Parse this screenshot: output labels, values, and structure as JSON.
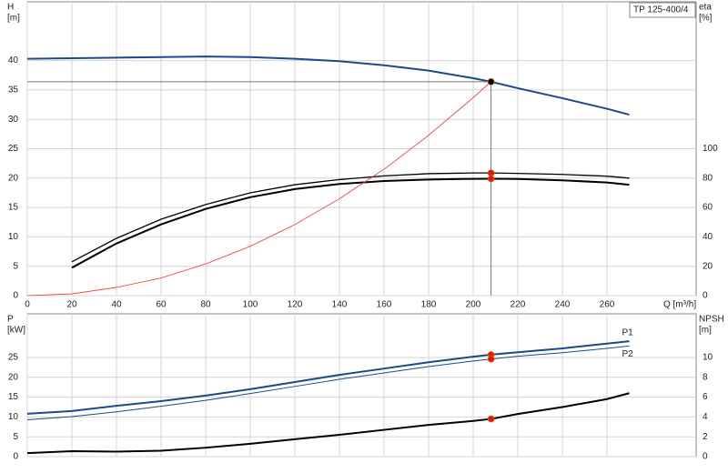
{
  "chart_data": [
    {
      "type": "line",
      "title": "TP 125-400/4",
      "ylabel": "H",
      "yunit": "[m]",
      "y2label": "eta",
      "y2unit": "[%]",
      "xlabel": "Q [m³/h]",
      "x": [
        0,
        20,
        40,
        60,
        80,
        100,
        120,
        140,
        160,
        180,
        200,
        208,
        220,
        240,
        260,
        270
      ],
      "xlim": [
        0,
        300
      ],
      "xticks": [
        0,
        20,
        40,
        60,
        80,
        100,
        120,
        140,
        160,
        180,
        200,
        220,
        240,
        260
      ],
      "ylim": [
        0,
        50
      ],
      "yticks": [
        0,
        5,
        10,
        15,
        20,
        25,
        30,
        35,
        40
      ],
      "y2lim": [
        0,
        200
      ],
      "y2ticks": [
        0,
        20,
        40,
        60,
        80,
        100
      ],
      "grid": true,
      "duty_x": 208,
      "series": [
        {
          "color": "#1b4a8a",
          "width": 2,
          "marker_color": "#f5c400",
          "values": [
            40.3,
            40.4,
            40.5,
            40.6,
            40.7,
            40.6,
            40.3,
            39.9,
            39.2,
            38.3,
            37.0,
            36.4,
            35.3,
            33.6,
            31.8,
            30.8
          ]
        },
        {
          "color": "#000000",
          "width": 1.3,
          "axis": "y2",
          "marker_color": "#ee1111",
          "values": [
            null,
            23,
            39,
            52,
            62,
            70,
            75.5,
            79,
            81.5,
            83,
            83.5,
            83.5,
            83.2,
            82.5,
            81.3,
            80
          ]
        },
        {
          "color": "#000000",
          "width": 2,
          "axis": "y2",
          "marker_color": "#ee1111",
          "values": [
            null,
            19,
            35.5,
            48.5,
            59,
            67,
            72.5,
            76,
            78,
            79,
            79.5,
            79.6,
            79.4,
            78.5,
            77,
            75.5
          ]
        },
        {
          "color": "#ff3030",
          "width": 0.8,
          "values": [
            0,
            0.3,
            1.4,
            3.0,
            5.4,
            8.4,
            12.1,
            16.5,
            21.5,
            27.3,
            33.7,
            36.4,
            null,
            null,
            null,
            null
          ]
        }
      ]
    },
    {
      "type": "line",
      "ylabel": "P",
      "yunit": "[kW]",
      "y2label": "NPSH",
      "y2unit": "[m]",
      "x": [
        0,
        20,
        40,
        60,
        80,
        100,
        120,
        140,
        160,
        180,
        200,
        208,
        220,
        240,
        260,
        270
      ],
      "xlim": [
        0,
        300
      ],
      "xticks": [
        0,
        20,
        40,
        60,
        80,
        100,
        120,
        140,
        160,
        180,
        200,
        220,
        240,
        260
      ],
      "ylim": [
        0,
        36
      ],
      "yticks": [
        0,
        5,
        10,
        15,
        20,
        25
      ],
      "y2lim": [
        0,
        14.4
      ],
      "y2ticks": [
        0,
        2,
        4,
        6,
        8,
        10
      ],
      "grid": true,
      "duty_x": 208,
      "series": [
        {
          "name": "P1",
          "color": "#1b4a8a",
          "width": 2,
          "marker_color": "#ee1111",
          "values": [
            10.8,
            11.5,
            12.8,
            14,
            15.4,
            17,
            18.8,
            20.6,
            22.2,
            23.8,
            25.2,
            25.7,
            26.3,
            27.3,
            28.5,
            29.1
          ]
        },
        {
          "name": "P2",
          "color": "#1b4a8a",
          "width": 1,
          "marker_color": "#ee1111",
          "values": [
            9.3,
            10.1,
            11.3,
            12.7,
            14.2,
            15.9,
            17.7,
            19.5,
            21.1,
            22.7,
            24.1,
            24.6,
            25.3,
            26.2,
            27.3,
            27.9
          ]
        },
        {
          "color": "#000000",
          "width": 2,
          "axis": "y2",
          "marker_color": "#ee1111",
          "values": [
            0.35,
            0.55,
            0.5,
            0.6,
            0.9,
            1.3,
            1.75,
            2.2,
            2.7,
            3.2,
            3.6,
            3.8,
            4.3,
            5.0,
            5.8,
            6.4
          ]
        }
      ]
    }
  ]
}
